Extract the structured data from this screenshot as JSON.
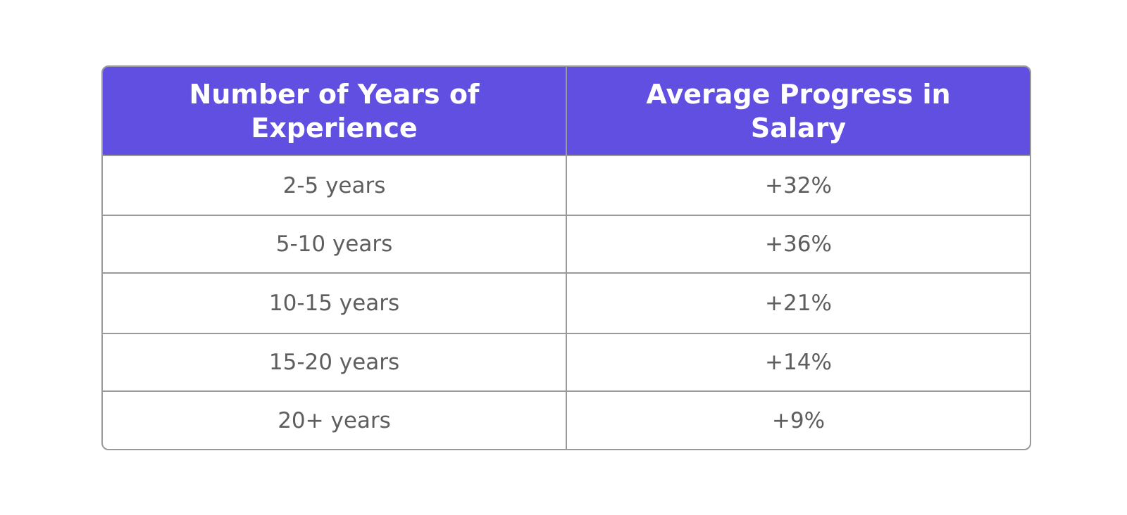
{
  "chart_data": {
    "type": "table",
    "columns": [
      "Number of Years of Experience",
      "Average Progress in Salary"
    ],
    "rows": [
      [
        "2-5 years",
        "+32%"
      ],
      [
        "5-10 years",
        "+36%"
      ],
      [
        "10-15 years",
        "+21%"
      ],
      [
        "15-20 years",
        "+14%"
      ],
      [
        "20+ years",
        "+9%"
      ]
    ],
    "header_color": "#614fe2"
  }
}
